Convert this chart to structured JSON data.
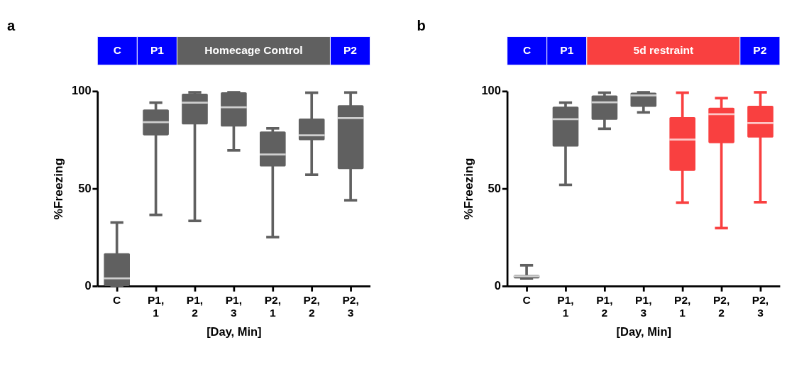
{
  "chart_data": [
    {
      "type": "box",
      "title": "a",
      "xlabel": "[Day, Min]",
      "ylabel": "%Freezing",
      "annotations": [
        "C",
        "P1",
        "Homecage Control",
        "P2"
      ],
      "categories": [
        "C",
        "P1, 1",
        "P1, 2",
        "P1, 3",
        "P2, 1",
        "P2, 2",
        "P2, 3"
      ],
      "ylim": [
        0,
        100
      ],
      "yticks": [
        0,
        50,
        100
      ],
      "series": [
        {
          "color": "#606060",
          "boxes": [
            {
              "low": 0,
              "q1": 0,
              "median": 3.9,
              "q3": 16.8,
              "high": 32.6
            },
            {
              "low": 36.5,
              "q1": 77.3,
              "median": 84.1,
              "q3": 90.6,
              "high": 94.1
            },
            {
              "low": 33.4,
              "q1": 82.9,
              "median": 94.1,
              "q3": 98.7,
              "high": 99.4
            },
            {
              "low": 69.6,
              "q1": 81.8,
              "median": 91.7,
              "q3": 99.4,
              "high": 99.4
            },
            {
              "low": 25.1,
              "q1": 61.3,
              "median": 67.5,
              "q3": 79.3,
              "high": 80.9
            },
            {
              "low": 57.1,
              "q1": 74.8,
              "median": 77.3,
              "q3": 85.9,
              "high": 99.2
            },
            {
              "low": 44.0,
              "q1": 60.0,
              "median": 86.2,
              "q3": 92.8,
              "high": 99.3
            }
          ]
        }
      ]
    },
    {
      "type": "box",
      "title": "b",
      "xlabel": "[Day, Min]",
      "ylabel": "%Freezing",
      "annotations": [
        "C",
        "P1",
        "5d restraint",
        "P2"
      ],
      "categories": [
        "C",
        "P1, 1",
        "P1, 2",
        "P1, 3",
        "P2, 1",
        "P2, 2",
        "P2, 3"
      ],
      "ylim": [
        0,
        100
      ],
      "yticks": [
        0,
        50,
        100
      ],
      "series": [
        {
          "color": "#606060",
          "boxes": [
            {
              "low": 3.9,
              "q1": 3.9,
              "median": 5.0,
              "q3": 5.7,
              "high": 10.6
            },
            {
              "low": 51.9,
              "q1": 71.5,
              "median": 85.6,
              "q3": 92.0,
              "high": 94.1
            },
            {
              "low": 80.7,
              "q1": 85.3,
              "median": 94.3,
              "q3": 97.8,
              "high": 99.2
            },
            {
              "low": 89.1,
              "q1": 91.9,
              "median": 97.8,
              "q3": 99.2,
              "high": 99.4
            },
            null,
            null,
            null
          ]
        },
        {
          "color": "#f94040",
          "boxes": [
            null,
            null,
            null,
            null,
            {
              "low": 42.8,
              "q1": 59.1,
              "median": 75.1,
              "q3": 86.7,
              "high": 99.2
            },
            {
              "low": 29.7,
              "q1": 73.3,
              "median": 88.2,
              "q3": 91.5,
              "high": 96.4
            },
            {
              "low": 43.0,
              "q1": 76.2,
              "median": 83.6,
              "q3": 92.5,
              "high": 99.4
            }
          ]
        }
      ]
    }
  ]
}
